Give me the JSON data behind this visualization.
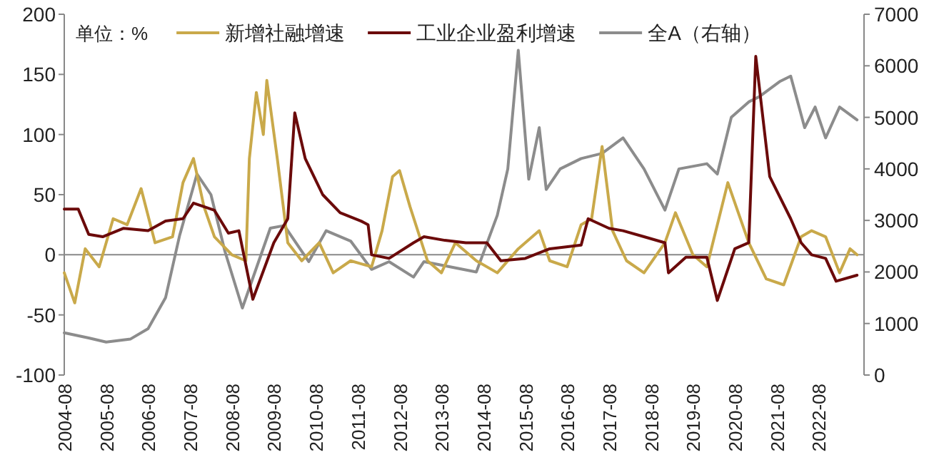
{
  "chart_data": {
    "type": "line",
    "annotations": [
      "单位：%"
    ],
    "legend": "top",
    "line_style": "solid",
    "xlim": [
      "2004-08",
      "2023-09"
    ],
    "xticks": [
      "2004-08",
      "2005-08",
      "2006-08",
      "2007-08",
      "2008-08",
      "2009-08",
      "2010-08",
      "2011-08",
      "2012-08",
      "2013-08",
      "2014-08",
      "2015-08",
      "2016-08",
      "2017-08",
      "2018-08",
      "2019-08",
      "2020-08",
      "2021-08",
      "2022-08"
    ],
    "ylim": [
      -100,
      200
    ],
    "yticks": [
      -100,
      -50,
      0,
      50,
      100,
      150,
      200
    ],
    "y2lim": [
      0,
      7000
    ],
    "y2ticks": [
      0,
      1000,
      2000,
      3000,
      4000,
      5000,
      6000,
      7000
    ],
    "series": [
      {
        "name": "全A（右轴）",
        "color": "#8c8c8c",
        "axis": "y2",
        "x": [
          "2004-08",
          "2005-03",
          "2005-08",
          "2006-03",
          "2006-08",
          "2007-01",
          "2007-05",
          "2007-10",
          "2008-02",
          "2008-06",
          "2008-11",
          "2009-07",
          "2009-11",
          "2010-06",
          "2010-11",
          "2011-06",
          "2011-12",
          "2012-05",
          "2012-12",
          "2013-03",
          "2014-06",
          "2014-12",
          "2015-03",
          "2015-06",
          "2015-09",
          "2015-12",
          "2016-02",
          "2016-06",
          "2016-12",
          "2017-06",
          "2017-12",
          "2018-06",
          "2018-12",
          "2019-04",
          "2019-12",
          "2020-03",
          "2020-07",
          "2020-12",
          "2021-03",
          "2021-09",
          "2021-12",
          "2022-04",
          "2022-07",
          "2022-10",
          "2023-02",
          "2023-07"
        ],
        "values": [
          820,
          720,
          640,
          700,
          900,
          1500,
          2700,
          3900,
          3500,
          2400,
          1300,
          2850,
          2900,
          2200,
          2800,
          2600,
          2050,
          2200,
          1900,
          2200,
          2000,
          3100,
          4000,
          6300,
          3800,
          4800,
          3600,
          4000,
          4200,
          4300,
          4600,
          4000,
          3200,
          4000,
          4100,
          3900,
          5000,
          5300,
          5400,
          5700,
          5800,
          4800,
          5200,
          4600,
          5200,
          4950
        ]
      },
      {
        "name": "新增社融增速",
        "color": "#c9a94a",
        "x": [
          "2004-08",
          "2004-11",
          "2005-02",
          "2005-06",
          "2005-10",
          "2006-02",
          "2006-06",
          "2006-10",
          "2007-03",
          "2007-06",
          "2007-09",
          "2007-12",
          "2008-03",
          "2008-08",
          "2008-12",
          "2009-01",
          "2009-03",
          "2009-05",
          "2009-06",
          "2009-09",
          "2009-12",
          "2010-04",
          "2010-09",
          "2011-01",
          "2011-06",
          "2011-12",
          "2012-03",
          "2012-06",
          "2012-08",
          "2012-11",
          "2013-04",
          "2013-08",
          "2013-12",
          "2014-06",
          "2014-12",
          "2015-06",
          "2015-12",
          "2016-03",
          "2016-08",
          "2016-12",
          "2017-03",
          "2017-06",
          "2017-09",
          "2018-01",
          "2018-06",
          "2018-12",
          "2019-03",
          "2019-08",
          "2019-12",
          "2020-06",
          "2020-09",
          "2020-12",
          "2021-05",
          "2021-10",
          "2022-03",
          "2022-06",
          "2022-10",
          "2023-02",
          "2023-05",
          "2023-07"
        ],
        "values": [
          -15,
          -40,
          5,
          -10,
          30,
          25,
          55,
          10,
          15,
          60,
          80,
          40,
          15,
          0,
          -5,
          80,
          135,
          100,
          145,
          80,
          10,
          -5,
          10,
          -15,
          -5,
          -10,
          20,
          65,
          70,
          40,
          -5,
          -15,
          10,
          -5,
          -15,
          5,
          20,
          -5,
          -10,
          25,
          30,
          90,
          20,
          -5,
          -15,
          10,
          35,
          0,
          -10,
          60,
          35,
          10,
          -20,
          -25,
          15,
          20,
          15,
          -15,
          5,
          0
        ]
      },
      {
        "name": "工业企业盈利增速",
        "color": "#6b0a0a",
        "x": [
          "2004-08",
          "2004-12",
          "2005-03",
          "2005-07",
          "2006-01",
          "2006-08",
          "2007-01",
          "2007-06",
          "2007-09",
          "2008-03",
          "2008-07",
          "2008-10",
          "2009-02",
          "2009-08",
          "2009-12",
          "2010-02",
          "2010-05",
          "2010-10",
          "2011-03",
          "2011-09",
          "2011-11",
          "2011-12",
          "2012-05",
          "2012-12",
          "2013-03",
          "2013-09",
          "2014-03",
          "2014-09",
          "2015-01",
          "2015-08",
          "2016-03",
          "2016-12",
          "2017-02",
          "2017-08",
          "2017-12",
          "2018-06",
          "2018-12",
          "2019-01",
          "2019-06",
          "2019-12",
          "2020-03",
          "2020-08",
          "2020-12",
          "2021-02",
          "2021-06",
          "2021-12",
          "2022-03",
          "2022-06",
          "2022-10",
          "2023-01",
          "2023-07"
        ],
        "values": [
          38,
          38,
          17,
          15,
          22,
          20,
          28,
          30,
          43,
          37,
          18,
          20,
          -37,
          10,
          30,
          118,
          80,
          50,
          35,
          28,
          25,
          0,
          -3,
          10,
          15,
          12,
          10,
          10,
          -5,
          -3,
          5,
          8,
          30,
          22,
          20,
          15,
          10,
          -15,
          -2,
          -2,
          -38,
          5,
          10,
          165,
          65,
          30,
          10,
          0,
          -3,
          -22,
          -17
        ]
      }
    ]
  }
}
